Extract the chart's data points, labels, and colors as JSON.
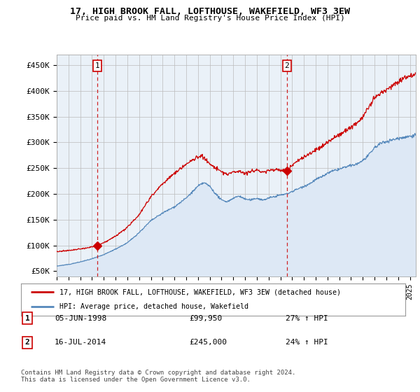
{
  "title": "17, HIGH BROOK FALL, LOFTHOUSE, WAKEFIELD, WF3 3EW",
  "subtitle": "Price paid vs. HM Land Registry's House Price Index (HPI)",
  "ylim": [
    40000,
    470000
  ],
  "yticks": [
    50000,
    100000,
    150000,
    200000,
    250000,
    300000,
    350000,
    400000,
    450000
  ],
  "ytick_labels": [
    "£50K",
    "£100K",
    "£150K",
    "£200K",
    "£250K",
    "£300K",
    "£350K",
    "£400K",
    "£450K"
  ],
  "sale1_date": 1998.43,
  "sale1_price": 99950,
  "sale1_label": "1",
  "sale2_date": 2014.54,
  "sale2_price": 245000,
  "sale2_label": "2",
  "red_line_color": "#cc0000",
  "blue_line_color": "#5588bb",
  "blue_fill_color": "#dde8f5",
  "vline_color": "#cc0000",
  "grid_color": "#bbbbbb",
  "plot_bg_color": "#eaf1f8",
  "background_color": "#ffffff",
  "legend_label_red": "17, HIGH BROOK FALL, LOFTHOUSE, WAKEFIELD, WF3 3EW (detached house)",
  "legend_label_blue": "HPI: Average price, detached house, Wakefield",
  "table_row1": [
    "1",
    "05-JUN-1998",
    "£99,950",
    "27% ↑ HPI"
  ],
  "table_row2": [
    "2",
    "16-JUL-2014",
    "£245,000",
    "24% ↑ HPI"
  ],
  "footnote": "Contains HM Land Registry data © Crown copyright and database right 2024.\nThis data is licensed under the Open Government Licence v3.0.",
  "xstart": 1995,
  "xend": 2025.5
}
